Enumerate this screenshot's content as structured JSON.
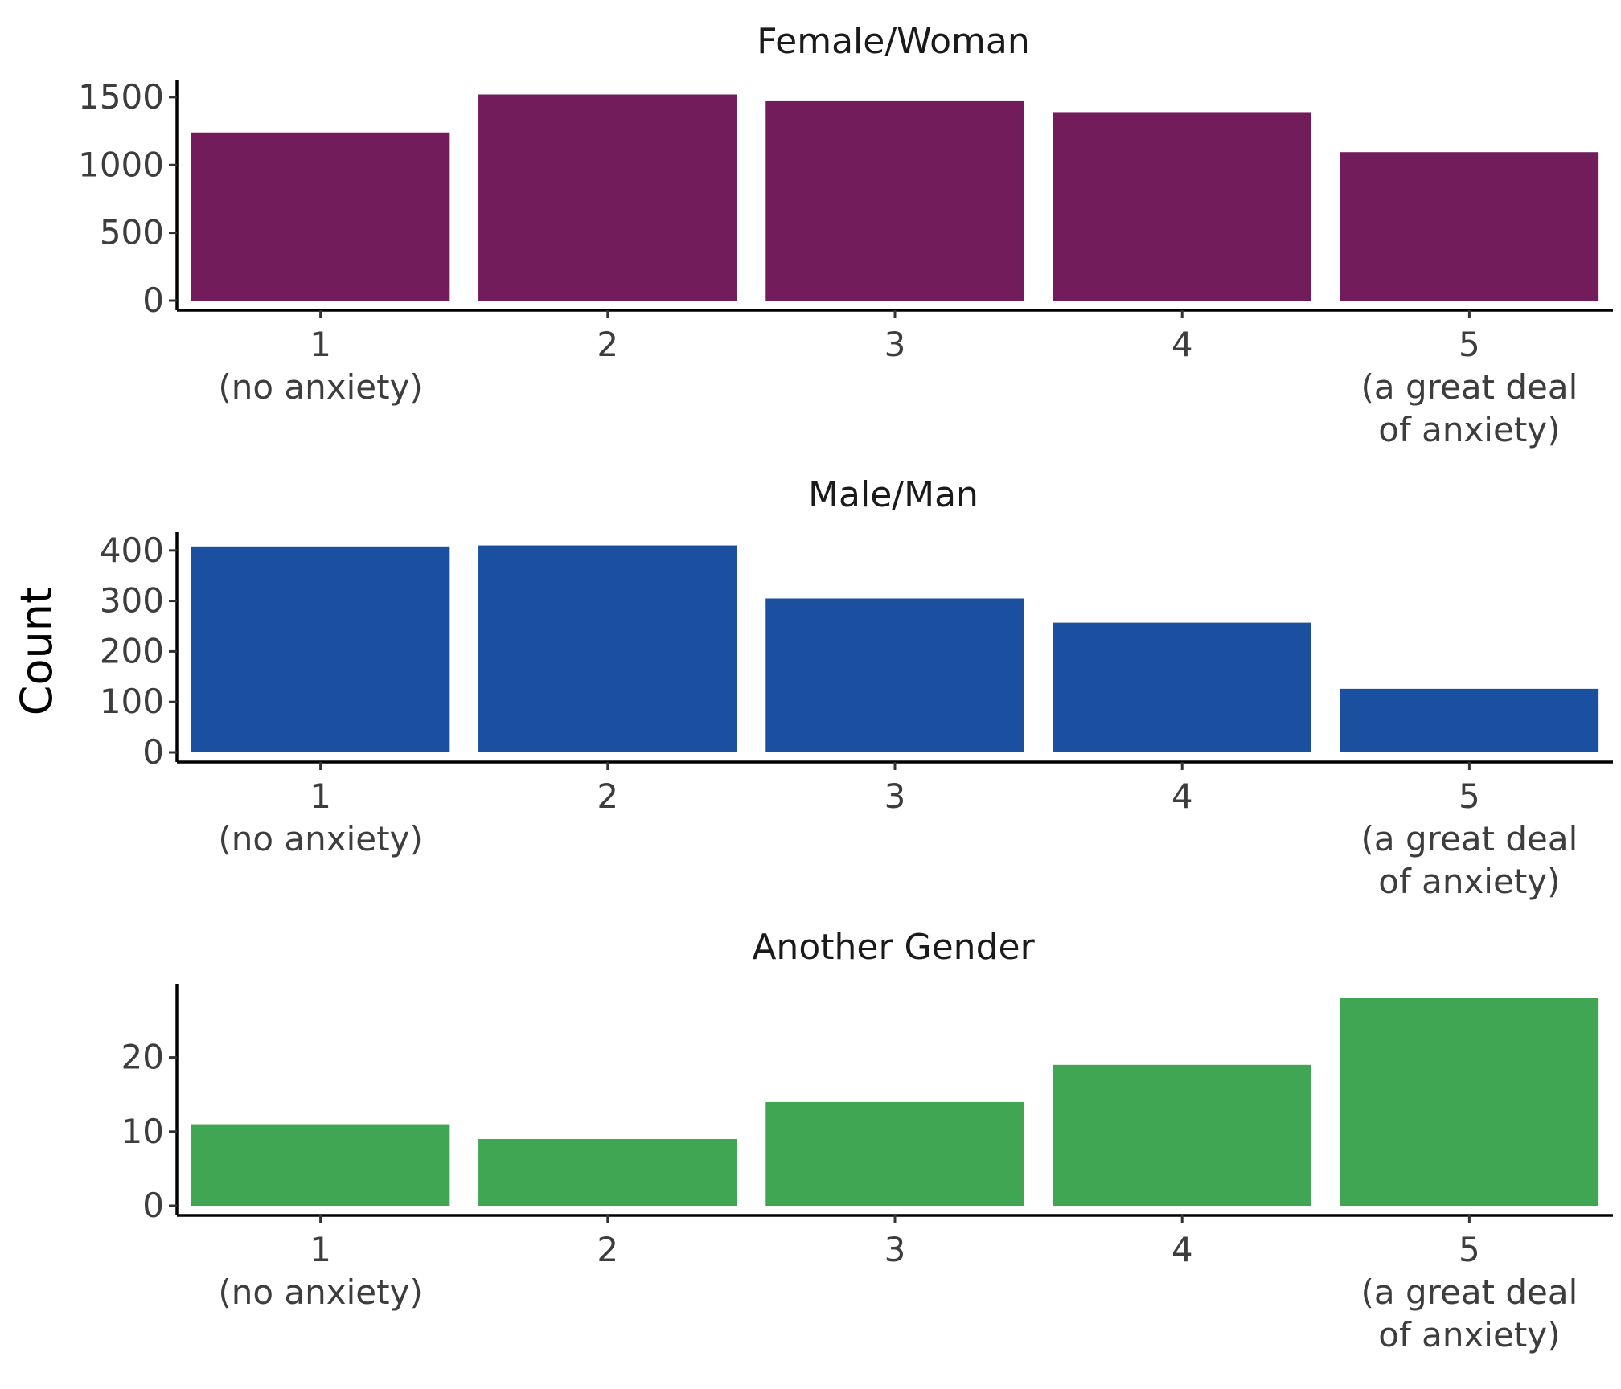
{
  "chart_data": {
    "type": "bar",
    "ylabel": "Count",
    "categories": [
      [
        "1",
        "(no anxiety)"
      ],
      [
        "2"
      ],
      [
        "3"
      ],
      [
        "4"
      ],
      [
        "5",
        "(a great deal",
        "of anxiety)"
      ]
    ],
    "panels": [
      {
        "title": "Female/Woman",
        "color": "#731C5C",
        "values": [
          1240,
          1520,
          1470,
          1390,
          1095
        ],
        "ylim": [
          0,
          1600
        ],
        "yticks": [
          0,
          500,
          1000,
          1500
        ]
      },
      {
        "title": "Male/Man",
        "color": "#1A509F",
        "values": [
          408,
          410,
          305,
          257,
          126
        ],
        "ylim": [
          0,
          430
        ],
        "yticks": [
          0,
          100,
          200,
          300,
          400
        ]
      },
      {
        "title": "Another Gender",
        "color": "#41A653",
        "values": [
          11,
          9,
          14,
          19,
          28
        ],
        "ylim": [
          0,
          29.5
        ],
        "yticks": [
          0,
          10,
          20
        ]
      }
    ]
  }
}
